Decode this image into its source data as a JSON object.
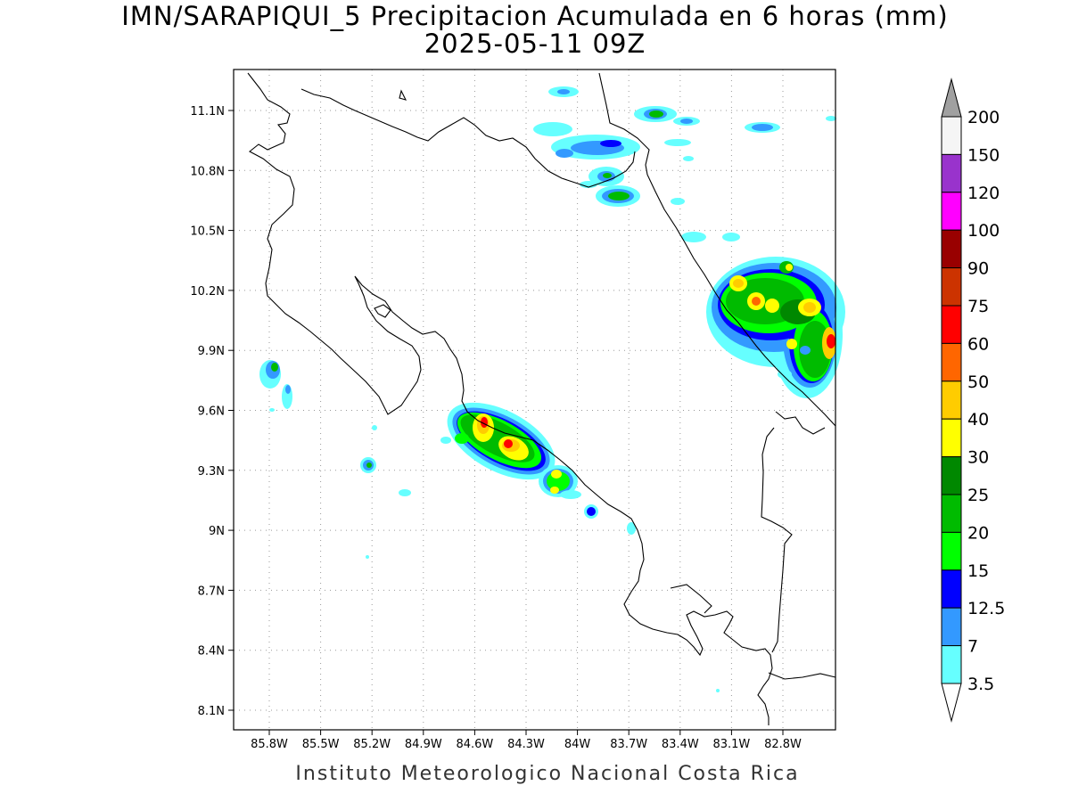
{
  "title": {
    "line1": "IMN/SARAPIQUI_5 Precipitacion Acumulada en 6 horas (mm)",
    "line2": "2025-05-11 09Z"
  },
  "credit": "Instituto Meteorologico Nacional Costa Rica",
  "map": {
    "lat_ticks": [
      "11.1N",
      "10.8N",
      "10.5N",
      "10.2N",
      "9.9N",
      "9.6N",
      "9.3N",
      "9N",
      "8.7N",
      "8.4N",
      "8.1N"
    ],
    "lon_ticks": [
      "85.8W",
      "85.5W",
      "85.2W",
      "84.9W",
      "84.6W",
      "84.3W",
      "84W",
      "83.7W",
      "83.4W",
      "83.1W",
      "82.8W"
    ],
    "grid": "dotted"
  },
  "colorbar": {
    "labels": [
      "200",
      "150",
      "120",
      "100",
      "90",
      "75",
      "60",
      "50",
      "40",
      "30",
      "25",
      "20",
      "15",
      "12.5",
      "7",
      "3.5"
    ],
    "colors": [
      "#a0a0a0",
      "#f5f5f5",
      "#9933cc",
      "#ff00ff",
      "#990000",
      "#cc3300",
      "#ff0000",
      "#ff6600",
      "#ffcc00",
      "#ffff00",
      "#008800",
      "#00bb00",
      "#00ff00",
      "#0000ff",
      "#3399ff",
      "#66ffff",
      "#ffffff"
    ]
  },
  "legend_colors": {
    "c3_5": "#66ffff",
    "c7": "#3399ff",
    "c12_5": "#0000ff",
    "c15": "#00ff00",
    "c20": "#00bb00",
    "c25": "#008800",
    "c30": "#ffff00",
    "c40": "#ffcc00",
    "c50": "#ff6600",
    "c60": "#ff0000"
  }
}
